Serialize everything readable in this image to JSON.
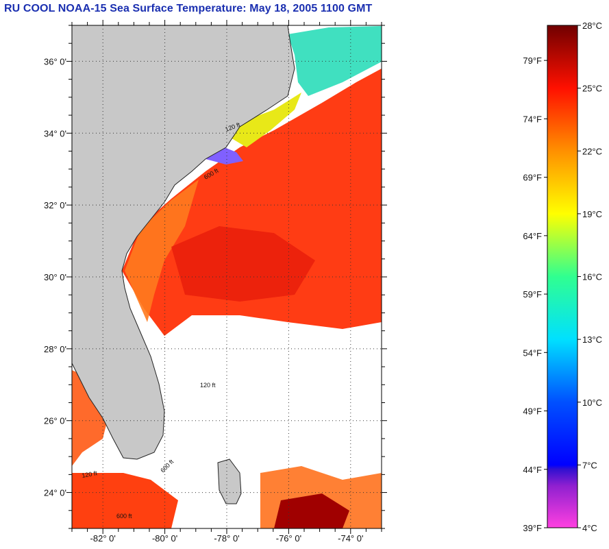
{
  "title": "RU COOL  NOAA-15  Sea Surface Temperature:  May 18, 2005 1100 GMT",
  "map": {
    "lon_range": [
      -83,
      -73
    ],
    "lat_range": [
      23,
      37
    ],
    "lat_ticks": [
      {
        "value": 24,
        "label": "24° 0'"
      },
      {
        "value": 26,
        "label": "26° 0'"
      },
      {
        "value": 28,
        "label": "28° 0'"
      },
      {
        "value": 30,
        "label": "30° 0'"
      },
      {
        "value": 32,
        "label": "32° 0'"
      },
      {
        "value": 34,
        "label": "34° 0'"
      },
      {
        "value": 36,
        "label": "36° 0'"
      }
    ],
    "lon_ticks": [
      {
        "value": -82,
        "label": "-82° 0'"
      },
      {
        "value": -80,
        "label": "-80° 0'"
      },
      {
        "value": -78,
        "label": "-78° 0'"
      },
      {
        "value": -76,
        "label": "-76° 0'"
      },
      {
        "value": -74,
        "label": "-74° 0'"
      }
    ],
    "contour_labels": [
      "600 ft",
      "120 ft",
      "600 ft",
      "120 ft",
      "600 ft",
      "120 ft"
    ],
    "colors": {
      "land": "#c8c8c8",
      "cloud": "#ffffff",
      "grid": "#333333"
    }
  },
  "colorbar": {
    "celsius_range": [
      4,
      28
    ],
    "fahrenheit_range": [
      39,
      82
    ],
    "celsius_ticks": [
      {
        "value": 4,
        "label": "4°C"
      },
      {
        "value": 7,
        "label": "7°C"
      },
      {
        "value": 10,
        "label": "10°C"
      },
      {
        "value": 13,
        "label": "13°C"
      },
      {
        "value": 16,
        "label": "16°C"
      },
      {
        "value": 19,
        "label": "19°C"
      },
      {
        "value": 22,
        "label": "22°C"
      },
      {
        "value": 25,
        "label": "25°C"
      },
      {
        "value": 28,
        "label": "28°C"
      }
    ],
    "fahrenheit_ticks": [
      {
        "value": 39,
        "label": "39°F"
      },
      {
        "value": 44,
        "label": "44°F"
      },
      {
        "value": 49,
        "label": "49°F"
      },
      {
        "value": 54,
        "label": "54°F"
      },
      {
        "value": 59,
        "label": "59°F"
      },
      {
        "value": 64,
        "label": "64°F"
      },
      {
        "value": 69,
        "label": "69°F"
      },
      {
        "value": 74,
        "label": "74°F"
      },
      {
        "value": 79,
        "label": "79°F"
      }
    ],
    "gradient_stops": [
      {
        "c": 4,
        "color": "#ff40e0"
      },
      {
        "c": 6,
        "color": "#9020d0"
      },
      {
        "c": 6.8,
        "color": "#3010d0"
      },
      {
        "c": 7,
        "color": "#0000ff"
      },
      {
        "c": 10,
        "color": "#0050ff"
      },
      {
        "c": 13,
        "color": "#00e0ff"
      },
      {
        "c": 16,
        "color": "#30ff90"
      },
      {
        "c": 19,
        "color": "#ffff00"
      },
      {
        "c": 22,
        "color": "#ff9000"
      },
      {
        "c": 25,
        "color": "#ff1000"
      },
      {
        "c": 28,
        "color": "#700000"
      }
    ]
  }
}
